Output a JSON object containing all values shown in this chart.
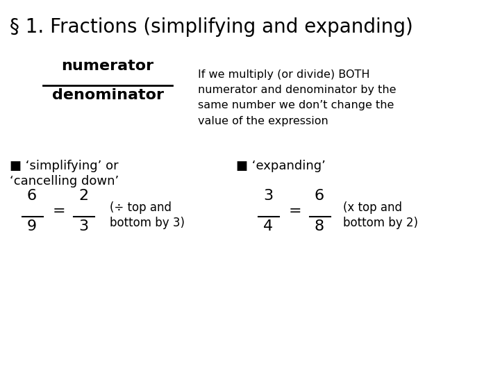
{
  "title": "§ 1. Fractions (simplifying and expanding)",
  "title_fontsize": 20,
  "bg_color": "#ffffff",
  "text_color": "#000000",
  "fraction_label_numerator": "numerator",
  "fraction_label_denominator": "denominator",
  "description": "If we multiply (or divide) BOTH\nnumerator and denominator by the\nsame number we don’t change the\nvalue of the expression",
  "bullet1_line1": "■ ‘simplifying’ or",
  "bullet1_line2": "‘cancelling down’",
  "bullet2": "■ ‘expanding’",
  "simplify_note_line1": "(÷ top and",
  "simplify_note_line2": "bottom by 3)",
  "expand_note_line1": "(x top and",
  "expand_note_line2": "bottom by 2)"
}
